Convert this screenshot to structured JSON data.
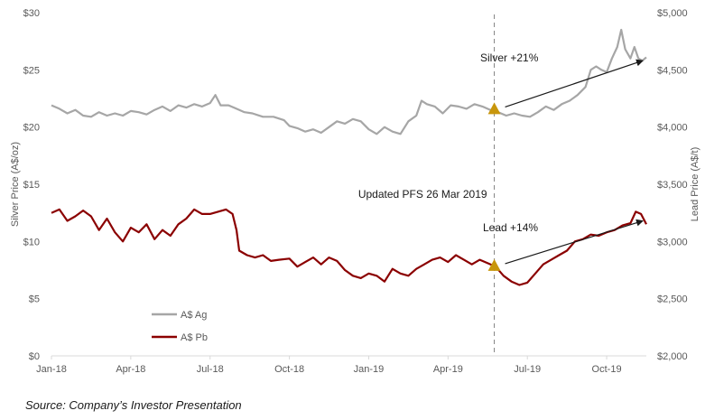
{
  "chart_data": {
    "type": "line",
    "x_ticks": [
      "Jan-18",
      "Apr-18",
      "Jul-18",
      "Oct-18",
      "Jan-19",
      "Apr-19",
      "Jul-19",
      "Oct-19"
    ],
    "y_left": {
      "label": "Silver Price (A$/oz)",
      "ticks": [
        "$0",
        "$5",
        "$10",
        "$15",
        "$20",
        "$25",
        "$30"
      ],
      "range": [
        0,
        30
      ]
    },
    "y_right": {
      "label": "Lead Price (A$/t)",
      "ticks": [
        "$2,000",
        "$2,500",
        "$3,000",
        "$3,500",
        "$4,000",
        "$4,500",
        "$5,000"
      ],
      "range": [
        2000,
        5000
      ]
    },
    "x_range_months": [
      0,
      22.5
    ],
    "series": [
      {
        "name": "A$ Ag",
        "axis": "left",
        "color": "#a6a6a6",
        "points": [
          [
            0,
            21.9
          ],
          [
            0.3,
            21.6
          ],
          [
            0.6,
            21.2
          ],
          [
            0.9,
            21.5
          ],
          [
            1.2,
            21.0
          ],
          [
            1.5,
            20.9
          ],
          [
            1.8,
            21.3
          ],
          [
            2.1,
            21.0
          ],
          [
            2.4,
            21.2
          ],
          [
            2.7,
            21.0
          ],
          [
            3.0,
            21.4
          ],
          [
            3.3,
            21.3
          ],
          [
            3.6,
            21.1
          ],
          [
            3.9,
            21.5
          ],
          [
            4.2,
            21.8
          ],
          [
            4.5,
            21.4
          ],
          [
            4.8,
            21.9
          ],
          [
            5.1,
            21.7
          ],
          [
            5.4,
            22.0
          ],
          [
            5.7,
            21.8
          ],
          [
            6.0,
            22.1
          ],
          [
            6.2,
            22.8
          ],
          [
            6.4,
            21.9
          ],
          [
            6.7,
            21.9
          ],
          [
            7.0,
            21.6
          ],
          [
            7.3,
            21.3
          ],
          [
            7.6,
            21.2
          ],
          [
            8.0,
            20.9
          ],
          [
            8.4,
            20.9
          ],
          [
            8.8,
            20.6
          ],
          [
            9.0,
            20.1
          ],
          [
            9.3,
            19.9
          ],
          [
            9.6,
            19.6
          ],
          [
            9.9,
            19.8
          ],
          [
            10.2,
            19.5
          ],
          [
            10.5,
            20.0
          ],
          [
            10.8,
            20.5
          ],
          [
            11.1,
            20.3
          ],
          [
            11.4,
            20.7
          ],
          [
            11.7,
            20.5
          ],
          [
            12.0,
            19.8
          ],
          [
            12.3,
            19.4
          ],
          [
            12.6,
            20.0
          ],
          [
            12.9,
            19.6
          ],
          [
            13.2,
            19.4
          ],
          [
            13.5,
            20.5
          ],
          [
            13.8,
            21.0
          ],
          [
            14.0,
            22.3
          ],
          [
            14.2,
            22.0
          ],
          [
            14.5,
            21.8
          ],
          [
            14.8,
            21.2
          ],
          [
            15.1,
            21.9
          ],
          [
            15.4,
            21.8
          ],
          [
            15.7,
            21.6
          ],
          [
            16.0,
            22.0
          ],
          [
            16.3,
            21.8
          ],
          [
            16.6,
            21.5
          ],
          [
            16.9,
            21.3
          ],
          [
            17.2,
            21.0
          ],
          [
            17.5,
            21.2
          ],
          [
            17.8,
            21.0
          ],
          [
            18.1,
            20.9
          ],
          [
            18.4,
            21.3
          ],
          [
            18.7,
            21.8
          ],
          [
            19.0,
            21.5
          ],
          [
            19.3,
            22.0
          ],
          [
            19.6,
            22.3
          ],
          [
            19.9,
            22.8
          ],
          [
            20.2,
            23.5
          ],
          [
            20.4,
            25.0
          ],
          [
            20.6,
            25.3
          ],
          [
            20.8,
            25.0
          ],
          [
            21.0,
            24.8
          ],
          [
            21.2,
            26.0
          ],
          [
            21.4,
            27.0
          ],
          [
            21.55,
            28.5
          ],
          [
            21.7,
            26.8
          ],
          [
            21.9,
            26.0
          ],
          [
            22.05,
            27.0
          ],
          [
            22.2,
            26.0
          ],
          [
            22.35,
            25.8
          ],
          [
            22.5,
            26.1
          ]
        ]
      },
      {
        "name": "A$ Pb",
        "axis": "right",
        "color": "#8b0000",
        "points": [
          [
            0,
            3250
          ],
          [
            0.3,
            3280
          ],
          [
            0.6,
            3180
          ],
          [
            0.9,
            3220
          ],
          [
            1.2,
            3270
          ],
          [
            1.5,
            3220
          ],
          [
            1.8,
            3100
          ],
          [
            2.1,
            3200
          ],
          [
            2.4,
            3080
          ],
          [
            2.7,
            3000
          ],
          [
            3.0,
            3120
          ],
          [
            3.3,
            3080
          ],
          [
            3.6,
            3150
          ],
          [
            3.9,
            3020
          ],
          [
            4.2,
            3100
          ],
          [
            4.5,
            3050
          ],
          [
            4.8,
            3150
          ],
          [
            5.1,
            3200
          ],
          [
            5.4,
            3280
          ],
          [
            5.7,
            3240
          ],
          [
            6.0,
            3240
          ],
          [
            6.3,
            3260
          ],
          [
            6.6,
            3280
          ],
          [
            6.85,
            3240
          ],
          [
            7.0,
            3100
          ],
          [
            7.1,
            2920
          ],
          [
            7.4,
            2880
          ],
          [
            7.7,
            2860
          ],
          [
            8.0,
            2880
          ],
          [
            8.3,
            2830
          ],
          [
            8.6,
            2840
          ],
          [
            9.0,
            2850
          ],
          [
            9.3,
            2780
          ],
          [
            9.6,
            2820
          ],
          [
            9.9,
            2860
          ],
          [
            10.2,
            2800
          ],
          [
            10.5,
            2860
          ],
          [
            10.8,
            2830
          ],
          [
            11.1,
            2750
          ],
          [
            11.4,
            2700
          ],
          [
            11.7,
            2680
          ],
          [
            12.0,
            2720
          ],
          [
            12.3,
            2700
          ],
          [
            12.6,
            2650
          ],
          [
            12.9,
            2760
          ],
          [
            13.2,
            2720
          ],
          [
            13.5,
            2700
          ],
          [
            13.8,
            2760
          ],
          [
            14.1,
            2800
          ],
          [
            14.4,
            2840
          ],
          [
            14.7,
            2860
          ],
          [
            15.0,
            2820
          ],
          [
            15.3,
            2880
          ],
          [
            15.6,
            2840
          ],
          [
            15.9,
            2800
          ],
          [
            16.2,
            2840
          ],
          [
            16.5,
            2810
          ],
          [
            16.8,
            2780
          ],
          [
            17.1,
            2700
          ],
          [
            17.4,
            2650
          ],
          [
            17.7,
            2620
          ],
          [
            18.0,
            2640
          ],
          [
            18.3,
            2720
          ],
          [
            18.6,
            2800
          ],
          [
            18.9,
            2840
          ],
          [
            19.2,
            2880
          ],
          [
            19.5,
            2920
          ],
          [
            19.8,
            3000
          ],
          [
            20.1,
            3020
          ],
          [
            20.4,
            3060
          ],
          [
            20.7,
            3050
          ],
          [
            21.0,
            3080
          ],
          [
            21.3,
            3100
          ],
          [
            21.6,
            3140
          ],
          [
            21.9,
            3160
          ],
          [
            22.1,
            3260
          ],
          [
            22.3,
            3240
          ],
          [
            22.5,
            3150
          ]
        ]
      }
    ],
    "event_line": {
      "x": 16.75,
      "label": "Updated PFS 26 Mar 2019"
    },
    "annotations": [
      {
        "label": "Silver +21%",
        "from_axis": "left",
        "from": [
          16.0,
          21.6
        ],
        "to": [
          22.5,
          25.8
        ]
      },
      {
        "label": "Lead +14%",
        "from_axis": "right",
        "from": [
          16.0,
          2790
        ],
        "to": [
          22.5,
          3180
        ]
      }
    ],
    "legend": {
      "placement": "bottom-left",
      "items": [
        "A$ Ag",
        "A$ Pb"
      ]
    },
    "grid": false
  },
  "caption": "Source: Company’s Investor Presentation",
  "marker_color": "#c8960c"
}
